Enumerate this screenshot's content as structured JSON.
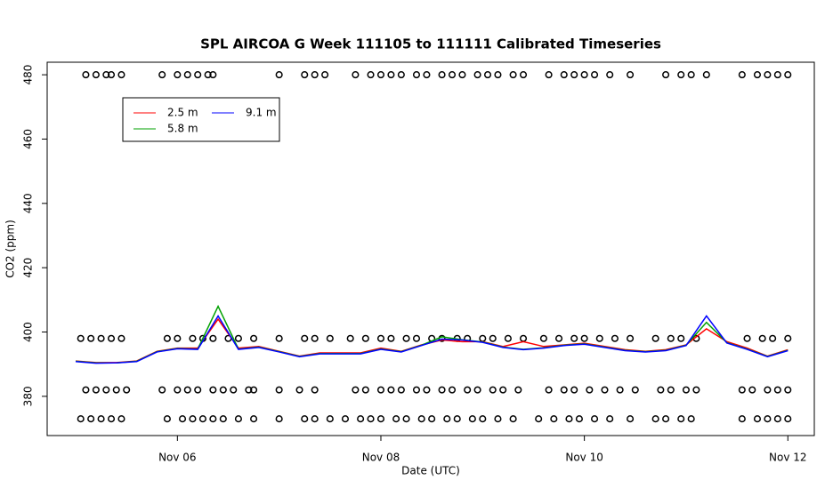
{
  "chart_data": {
    "type": "line",
    "title": "SPL AIRCOA G  Week 111105 to 111111  Calibrated Timeseries",
    "x_label": "Date (UTC)",
    "y_label": "CO2 (ppm)",
    "x": [
      5.0,
      5.2,
      5.4,
      5.6,
      5.8,
      6.0,
      6.2,
      6.4,
      6.6,
      6.8,
      7.0,
      7.2,
      7.4,
      7.6,
      7.8,
      8.0,
      8.2,
      8.4,
      8.6,
      8.8,
      9.0,
      9.2,
      9.4,
      9.6,
      9.8,
      10.0,
      10.2,
      10.4,
      10.6,
      10.8,
      11.0,
      11.2,
      11.4,
      11.6,
      11.8,
      12.0
    ],
    "series": [
      {
        "name": "2.5 m",
        "color": "#ff0000",
        "values": [
          391,
          390.5,
          390.5,
          391,
          394,
          395,
          395,
          404,
          395,
          395.5,
          394,
          392.5,
          393.5,
          393.5,
          393.5,
          395,
          394,
          396,
          397.5,
          397,
          397,
          395.5,
          397,
          395.5,
          396,
          396.5,
          395.5,
          394.5,
          394,
          394.5,
          396,
          401,
          397,
          395,
          392.5,
          394.5
        ]
      },
      {
        "name": "5.8 m",
        "color": "#00a000",
        "values": [
          390.9,
          390.4,
          390.4,
          390.9,
          393.9,
          394.9,
          394.7,
          408,
          394.7,
          395.3,
          393.9,
          392.4,
          393.3,
          393.3,
          393.3,
          394.7,
          393.9,
          395.9,
          398.5,
          397.6,
          396.9,
          395.3,
          394.6,
          395.1,
          395.9,
          396.3,
          395.3,
          394.3,
          393.9,
          394.3,
          395.9,
          403,
          396.7,
          394.7,
          392.4,
          394.3
        ]
      },
      {
        "name": "9.1 m",
        "color": "#0000ff",
        "values": [
          390.8,
          390.3,
          390.4,
          390.8,
          393.8,
          394.8,
          394.6,
          405,
          394.6,
          395.2,
          393.8,
          392.3,
          393.2,
          393.2,
          393.2,
          394.6,
          393.8,
          395.8,
          397.8,
          397.5,
          396.8,
          395.2,
          394.5,
          395,
          395.8,
          396.2,
          395.2,
          394.2,
          393.8,
          394.2,
          395.8,
          405,
          396.6,
          394.6,
          392.3,
          394.2
        ]
      }
    ],
    "markers": [
      {
        "y": 480,
        "x": [
          5.1,
          5.2,
          5.3,
          5.35,
          5.45,
          5.85,
          6.0,
          6.1,
          6.2,
          6.3,
          6.35,
          7.0,
          7.25,
          7.35,
          7.45,
          7.75,
          7.9,
          8.0,
          8.1,
          8.2,
          8.35,
          8.45,
          8.6,
          8.7,
          8.8,
          8.95,
          9.05,
          9.15,
          9.3,
          9.4,
          9.65,
          9.8,
          9.9,
          10.0,
          10.1,
          10.25,
          10.45,
          10.8,
          10.95,
          11.05,
          11.2,
          11.55,
          11.7,
          11.8,
          11.9,
          12.0
        ]
      },
      {
        "y": 398,
        "x": [
          5.05,
          5.15,
          5.25,
          5.35,
          5.45,
          5.9,
          6.0,
          6.15,
          6.25,
          6.35,
          6.5,
          6.6,
          6.75,
          7.0,
          7.25,
          7.35,
          7.5,
          7.7,
          7.85,
          8.0,
          8.1,
          8.25,
          8.35,
          8.5,
          8.6,
          8.75,
          8.85,
          9.0,
          9.1,
          9.25,
          9.4,
          9.6,
          9.75,
          9.9,
          10.0,
          10.15,
          10.3,
          10.45,
          10.7,
          10.85,
          10.95,
          11.1,
          11.6,
          11.75,
          11.85,
          12.0
        ]
      },
      {
        "y": 382,
        "x": [
          5.1,
          5.2,
          5.3,
          5.4,
          5.5,
          5.85,
          6.0,
          6.1,
          6.2,
          6.35,
          6.45,
          6.55,
          6.7,
          6.75,
          7.0,
          7.2,
          7.35,
          7.75,
          7.85,
          8.0,
          8.1,
          8.2,
          8.35,
          8.45,
          8.6,
          8.7,
          8.85,
          8.95,
          9.1,
          9.2,
          9.35,
          9.65,
          9.8,
          9.9,
          10.05,
          10.2,
          10.35,
          10.5,
          10.75,
          10.85,
          11.0,
          11.1,
          11.55,
          11.65,
          11.8,
          11.9,
          12.0
        ]
      },
      {
        "y": 373,
        "x": [
          5.05,
          5.15,
          5.25,
          5.35,
          5.45,
          5.9,
          6.05,
          6.15,
          6.25,
          6.35,
          6.45,
          6.6,
          6.75,
          7.0,
          7.25,
          7.35,
          7.5,
          7.65,
          7.8,
          7.9,
          8.0,
          8.15,
          8.25,
          8.4,
          8.5,
          8.65,
          8.75,
          8.9,
          9.0,
          9.15,
          9.3,
          9.55,
          9.7,
          9.85,
          9.95,
          10.1,
          10.25,
          10.45,
          10.7,
          10.8,
          10.95,
          11.05,
          11.55,
          11.7,
          11.8,
          11.9,
          12.0
        ]
      }
    ],
    "xlim": [
      4.72,
      12.26
    ],
    "ylim": [
      367.8,
      483.9
    ],
    "xticks": [
      {
        "value": 6,
        "label": "Nov 06"
      },
      {
        "value": 8,
        "label": "Nov 08"
      },
      {
        "value": 10,
        "label": "Nov 10"
      },
      {
        "value": 12,
        "label": "Nov 12"
      }
    ],
    "yticks": [
      380,
      400,
      420,
      440,
      460,
      480
    ]
  }
}
